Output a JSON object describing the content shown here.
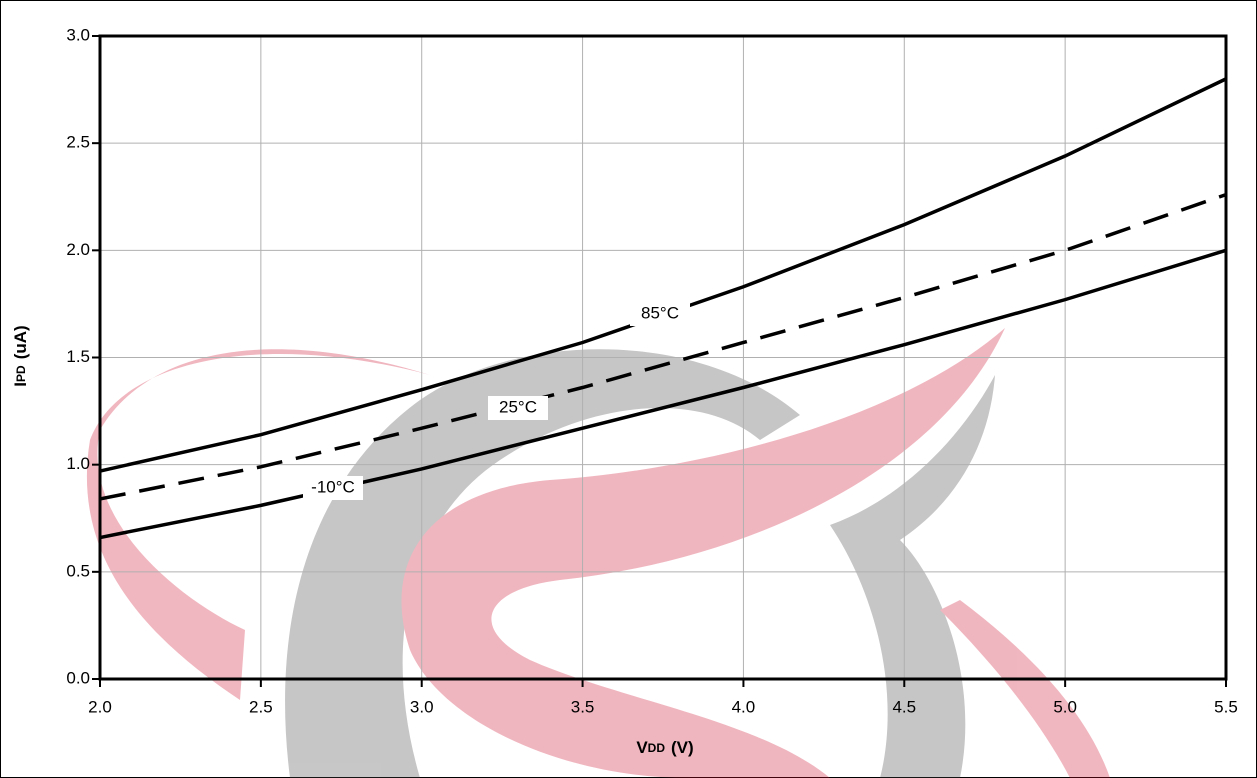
{
  "chart_data": {
    "type": "line",
    "x_label": {
      "main": "V",
      "sub": "DD",
      "unit": "(V)"
    },
    "y_label": {
      "main": "I",
      "sub": "PD",
      "unit": "(uA)"
    },
    "x": [
      2.0,
      2.5,
      3.0,
      3.5,
      4.0,
      4.5,
      5.0,
      5.5
    ],
    "series": [
      {
        "name": "85°C",
        "color": "#000000",
        "line_style": "solid",
        "values": [
          0.97,
          1.14,
          1.35,
          1.57,
          1.83,
          2.12,
          2.44,
          2.8
        ]
      },
      {
        "name": "25°C",
        "color": "#000000",
        "line_style": "dashed",
        "values": [
          0.84,
          0.99,
          1.17,
          1.36,
          1.57,
          1.78,
          2.0,
          2.26
        ]
      },
      {
        "name": "-10°C",
        "color": "#000000",
        "line_style": "solid",
        "values": [
          0.66,
          0.81,
          0.98,
          1.17,
          1.36,
          1.56,
          1.77,
          2.0
        ]
      }
    ],
    "xlim": [
      2.0,
      5.5
    ],
    "xticks": [
      {
        "value": 2,
        "label": "2.0"
      },
      2.5,
      {
        "value": 3,
        "label": "3.0"
      },
      3.5,
      {
        "value": 4,
        "label": "4.0"
      },
      4.5,
      {
        "value": 5,
        "label": "5.0"
      },
      5.5
    ],
    "ylim": [
      0,
      3
    ],
    "yticks": [
      {
        "value": 0,
        "label": "0.0"
      },
      0.5,
      {
        "value": 1,
        "label": "1.0"
      },
      1.5,
      {
        "value": 2,
        "label": "2.0"
      },
      2.5,
      {
        "value": 3,
        "label": "3.0"
      }
    ],
    "grid": true
  }
}
